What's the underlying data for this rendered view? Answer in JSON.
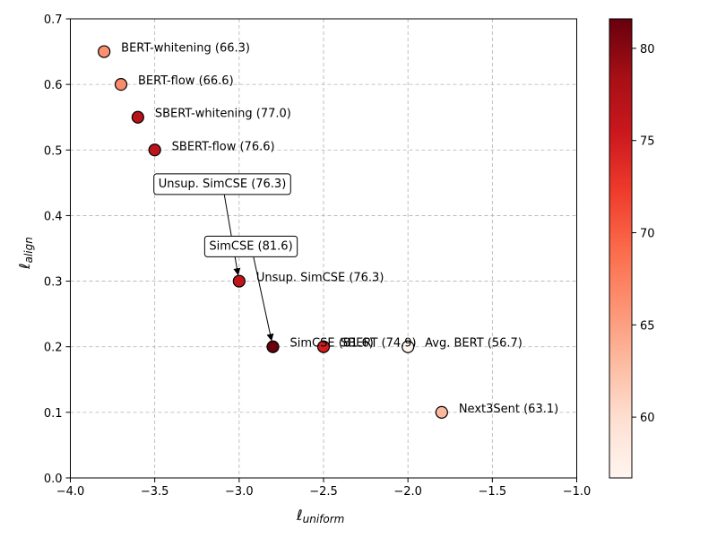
{
  "chart_data": {
    "type": "scatter",
    "xlabel": "ℓ",
    "xlabel_sub": "uniform",
    "ylabel": "ℓ",
    "ylabel_sub": "align",
    "xlim": [
      -4.0,
      -1.0
    ],
    "ylim": [
      0.0,
      0.7
    ],
    "x_ticks": [
      -4.0,
      -3.5,
      -3.0,
      -2.5,
      -2.0,
      -1.5,
      -1.0
    ],
    "x_tick_labels": [
      "−4.0",
      "−3.5",
      "−3.0",
      "−2.5",
      "−2.0",
      "−1.5",
      "−1.0"
    ],
    "y_ticks": [
      0.0,
      0.1,
      0.2,
      0.3,
      0.4,
      0.5,
      0.6,
      0.7
    ],
    "y_tick_labels": [
      "0.0",
      "0.1",
      "0.2",
      "0.3",
      "0.4",
      "0.5",
      "0.6",
      "0.7"
    ],
    "grid": true,
    "colormap": "Reds",
    "color_range": [
      56.7,
      81.6
    ],
    "colorbar_ticks": [
      60,
      65,
      70,
      75,
      80
    ],
    "colorbar_tick_labels": [
      "60",
      "65",
      "70",
      "75",
      "80"
    ],
    "points": [
      {
        "x": -3.8,
        "y": 0.65,
        "value": 66.3,
        "label": "BERT-whitening (66.3)"
      },
      {
        "x": -3.7,
        "y": 0.6,
        "value": 66.6,
        "label": "BERT-flow (66.6)"
      },
      {
        "x": -3.6,
        "y": 0.55,
        "value": 77.0,
        "label": "SBERT-whitening (77.0)"
      },
      {
        "x": -3.5,
        "y": 0.5,
        "value": 76.6,
        "label": "SBERT-flow (76.6)"
      },
      {
        "x": -3.0,
        "y": 0.3,
        "value": 76.3,
        "label": "Unsup. SimCSE (76.3)"
      },
      {
        "x": -2.8,
        "y": 0.2,
        "value": 81.6,
        "label": "SimCSE (81.6)"
      },
      {
        "x": -2.5,
        "y": 0.2,
        "value": 74.9,
        "label": "SBERT (74.9)"
      },
      {
        "x": -2.0,
        "y": 0.2,
        "value": 56.7,
        "label": "Avg. BERT (56.7)"
      },
      {
        "x": -1.8,
        "y": 0.1,
        "value": 63.1,
        "label": "Next3Sent (63.1)"
      }
    ],
    "annotations": [
      {
        "text": "Unsup. SimCSE (76.3)",
        "text_x": -3.1,
        "text_y": 0.45,
        "target_x": -3.0,
        "target_y": 0.3
      },
      {
        "text": "SimCSE (81.6)",
        "text_x": -2.93,
        "text_y": 0.355,
        "target_x": -2.8,
        "target_y": 0.2
      }
    ]
  }
}
